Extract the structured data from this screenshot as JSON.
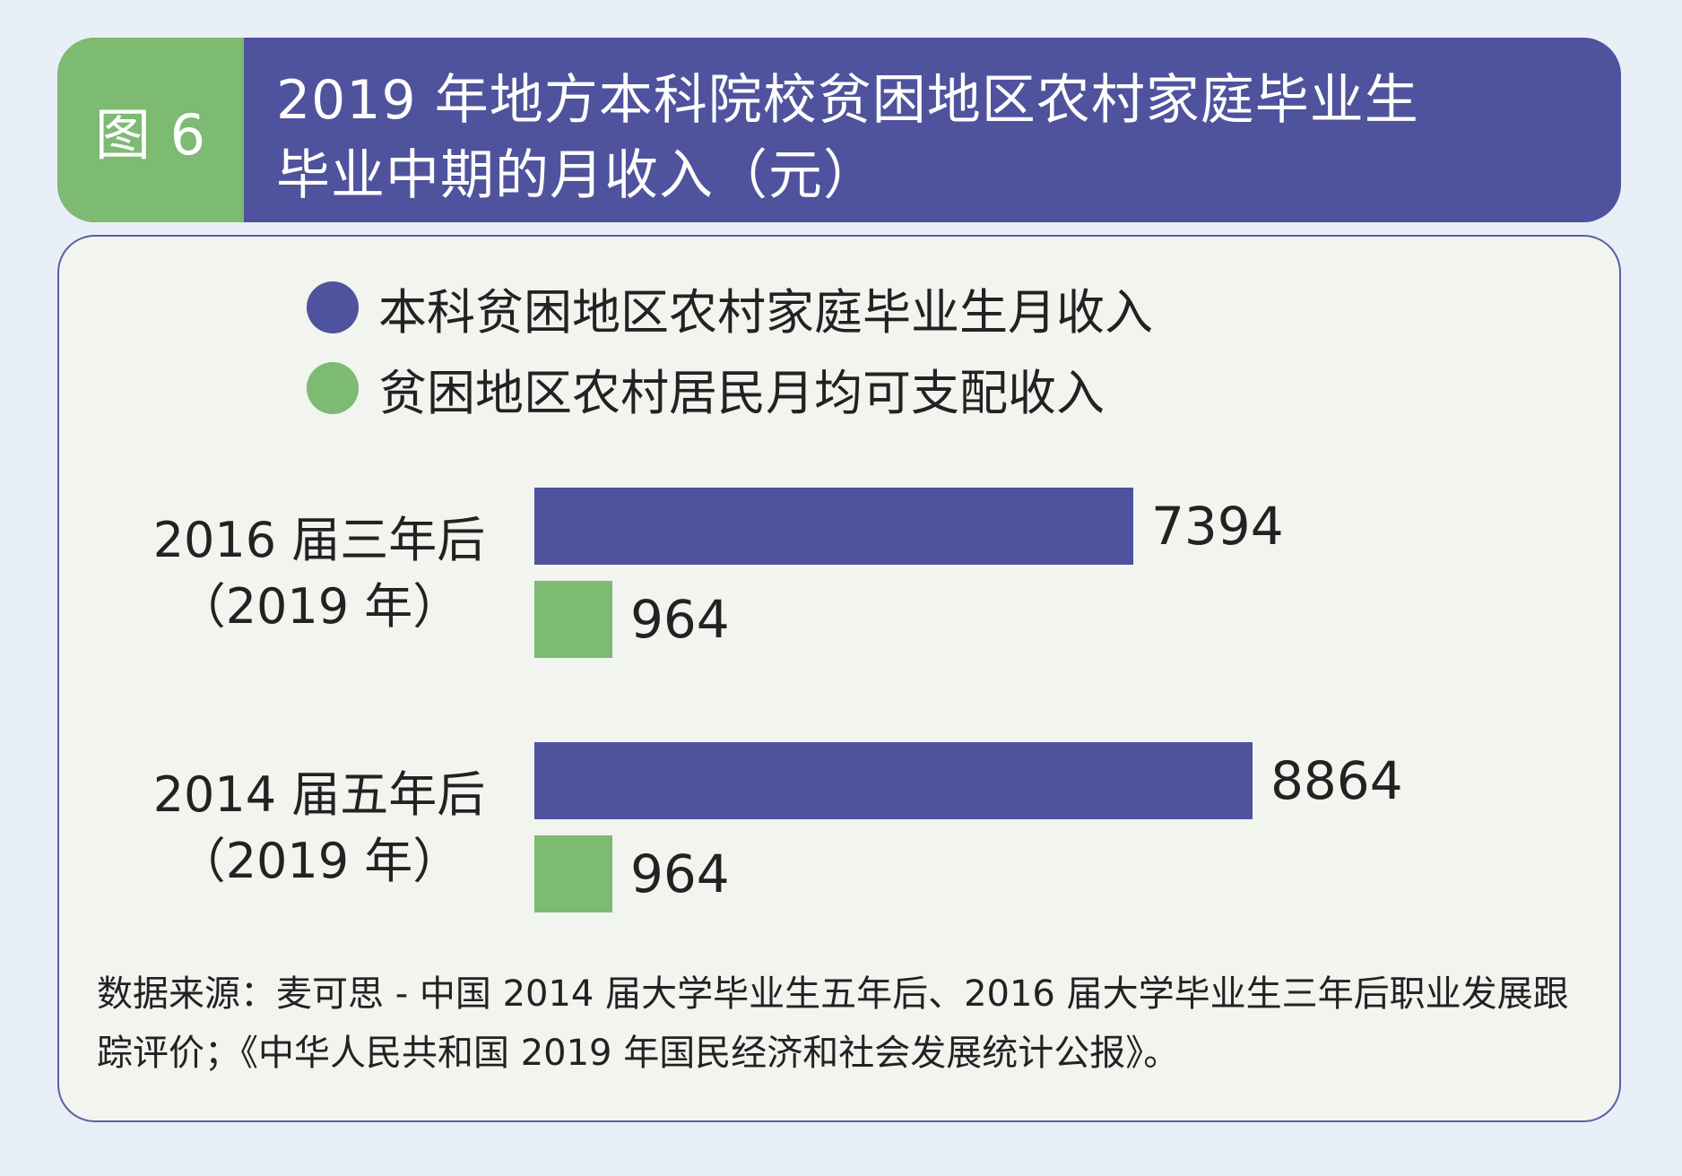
{
  "header": {
    "figure_label": "图 6",
    "title_line1": "2019 年地方本科院校贫困地区农村家庭毕业生",
    "title_line2": "毕业中期的月收入（元）"
  },
  "chart_data": {
    "type": "bar",
    "orientation": "horizontal",
    "title": "2019 年地方本科院校贫困地区农村家庭毕业生毕业中期的月收入（元）",
    "categories": [
      {
        "line1": "2016 届三年后",
        "line2": "（2019 年）"
      },
      {
        "line1": "2014 届五年后",
        "line2": "（2019 年）"
      }
    ],
    "series": [
      {
        "name": "本科贫困地区农村家庭毕业生月收入",
        "color": "#4f529c",
        "values": [
          7394,
          8864
        ]
      },
      {
        "name": "贫困地区农村居民月均可支配收入",
        "color": "#7dba72",
        "values": [
          964,
          964
        ]
      }
    ],
    "xlim": [
      0,
      10000
    ],
    "grid": false,
    "legend_position": "top-left",
    "source": "数据来源：麦可思 - 中国 2014 届大学毕业生五年后、2016 届大学毕业生三年后职业发展跟踪评价；《中华人民共和国 2019 年国民经济和社会发展统计公报》。"
  }
}
